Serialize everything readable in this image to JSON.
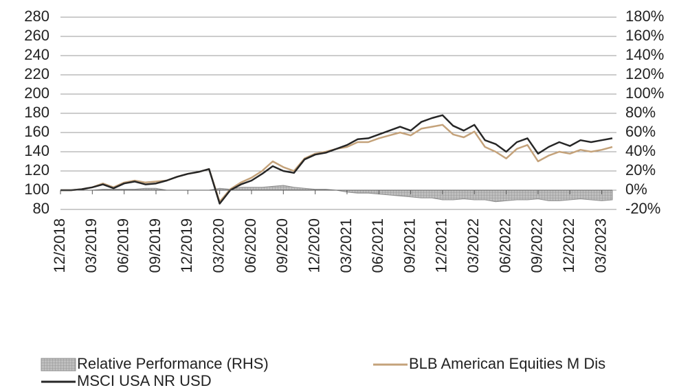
{
  "chart_data": {
    "type": "line",
    "categories": [
      "12/2018",
      null,
      null,
      "03/2019",
      null,
      null,
      "06/2019",
      null,
      null,
      "09/2019",
      null,
      null,
      "12/2019",
      null,
      null,
      "03/2020",
      null,
      null,
      "06/2020",
      null,
      null,
      "09/2020",
      null,
      null,
      "12/2020",
      null,
      null,
      "03/2021",
      null,
      null,
      "06/2021",
      null,
      null,
      "09/2021",
      null,
      null,
      "12/2021",
      null,
      null,
      "03/2022",
      null,
      null,
      "06/2022",
      null,
      null,
      "09/2022",
      null,
      null,
      "12/2022",
      null,
      null,
      "03/2023",
      null
    ],
    "series": [
      {
        "name": "Relative Performance (RHS)",
        "type": "area",
        "axis": "y2",
        "color": "#bfbfbf",
        "values": [
          0,
          0,
          0,
          0,
          1,
          1,
          1,
          1,
          2,
          2,
          0,
          0,
          0,
          0,
          0,
          2,
          1,
          3,
          3,
          3,
          4,
          5,
          3,
          2,
          1,
          1,
          0,
          -2,
          -3,
          -3,
          -4,
          -5,
          -6,
          -7,
          -8,
          -8,
          -10,
          -10,
          -9,
          -10,
          -10,
          -12,
          -11,
          -10,
          -10,
          -9,
          -11,
          -11,
          -10,
          -9,
          -10,
          -11,
          -10
        ]
      },
      {
        "name": "BLB American Equities M Dis",
        "color": "#c4a27a",
        "values": [
          100,
          100,
          101,
          103,
          107,
          103,
          108,
          110,
          108,
          109,
          110,
          114,
          117,
          119,
          122,
          88,
          101,
          108,
          113,
          120,
          130,
          124,
          120,
          133,
          138,
          140,
          143,
          145,
          150,
          150,
          154,
          157,
          160,
          157,
          164,
          166,
          168,
          158,
          155,
          161,
          145,
          140,
          133,
          143,
          147,
          130,
          136,
          140,
          138,
          142,
          140,
          142,
          145
        ]
      },
      {
        "name": "MSCI USA NR USD",
        "color": "#262626",
        "values": [
          100,
          100,
          101,
          103,
          106,
          102,
          107,
          109,
          106,
          107,
          110,
          114,
          117,
          119,
          122,
          86,
          100,
          106,
          110,
          117,
          125,
          120,
          118,
          132,
          137,
          139,
          143,
          147,
          153,
          154,
          158,
          162,
          166,
          162,
          171,
          175,
          178,
          167,
          162,
          168,
          152,
          148,
          140,
          150,
          154,
          138,
          145,
          150,
          146,
          152,
          150,
          152,
          154
        ]
      }
    ],
    "ylim": [
      80,
      280
    ],
    "yticks": [
      80,
      100,
      120,
      140,
      160,
      180,
      200,
      220,
      240,
      260,
      280
    ],
    "y2lim": [
      -20,
      180
    ],
    "y2ticks": [
      {
        "value": -20,
        "label": "-20%"
      },
      {
        "value": 0,
        "label": "0%"
      },
      {
        "value": 20,
        "label": "20%"
      },
      {
        "value": 40,
        "label": "40%"
      },
      {
        "value": 60,
        "label": "60%"
      },
      {
        "value": 80,
        "label": "80%"
      },
      {
        "value": 100,
        "label": "100%"
      },
      {
        "value": 120,
        "label": "120%"
      },
      {
        "value": 140,
        "label": "140%"
      },
      {
        "value": 160,
        "label": "160%"
      },
      {
        "value": 180,
        "label": "180%"
      }
    ],
    "grid": true,
    "legend": "bottom"
  }
}
